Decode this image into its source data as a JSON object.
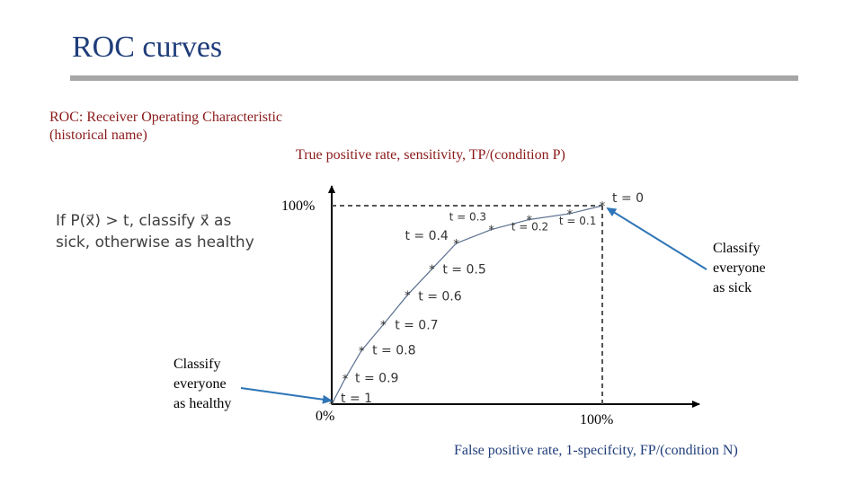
{
  "slide": {
    "title": "ROC curves",
    "definition_line1": "ROC: Receiver Operating Characteristic",
    "definition_line2": "(historical name)",
    "rule_line1": "If P(x⃗) > t, classify x⃗ as",
    "rule_line2": "sick, otherwise as healthy",
    "callout_sick": [
      "Classify",
      "everyone",
      "as sick"
    ],
    "callout_healthy": [
      "Classify",
      "everyone",
      "as healthy"
    ]
  },
  "chart_data": {
    "type": "line",
    "xlabel": "False positive rate, 1-specifcity, FP/(condition N)",
    "ylabel": "True positive rate, sensitivity, TP/(condition P)",
    "x_tick_labels": [
      "0%",
      "100%"
    ],
    "y_tick_labels": [
      "100%"
    ],
    "xlim": [
      0,
      1
    ],
    "ylim": [
      0,
      1
    ],
    "grid": false,
    "series": [
      {
        "points": [
          {
            "t": "t = 1",
            "x": 0.0,
            "y": 0.0
          },
          {
            "t": "t = 0.9",
            "x": 0.05,
            "y": 0.13
          },
          {
            "t": "t = 0.8",
            "x": 0.11,
            "y": 0.27
          },
          {
            "t": "t = 0.7",
            "x": 0.19,
            "y": 0.4
          },
          {
            "t": "t = 0.6",
            "x": 0.28,
            "y": 0.55
          },
          {
            "t": "t = 0.5",
            "x": 0.37,
            "y": 0.68
          },
          {
            "t": "t = 0.4",
            "x": 0.46,
            "y": 0.81
          },
          {
            "t": "t = 0.3",
            "x": 0.59,
            "y": 0.88
          },
          {
            "t": "t = 0.2",
            "x": 0.73,
            "y": 0.93
          },
          {
            "t": "t = 0.1",
            "x": 0.88,
            "y": 0.96
          },
          {
            "t": "t = 0",
            "x": 1.0,
            "y": 1.0
          }
        ]
      }
    ]
  }
}
